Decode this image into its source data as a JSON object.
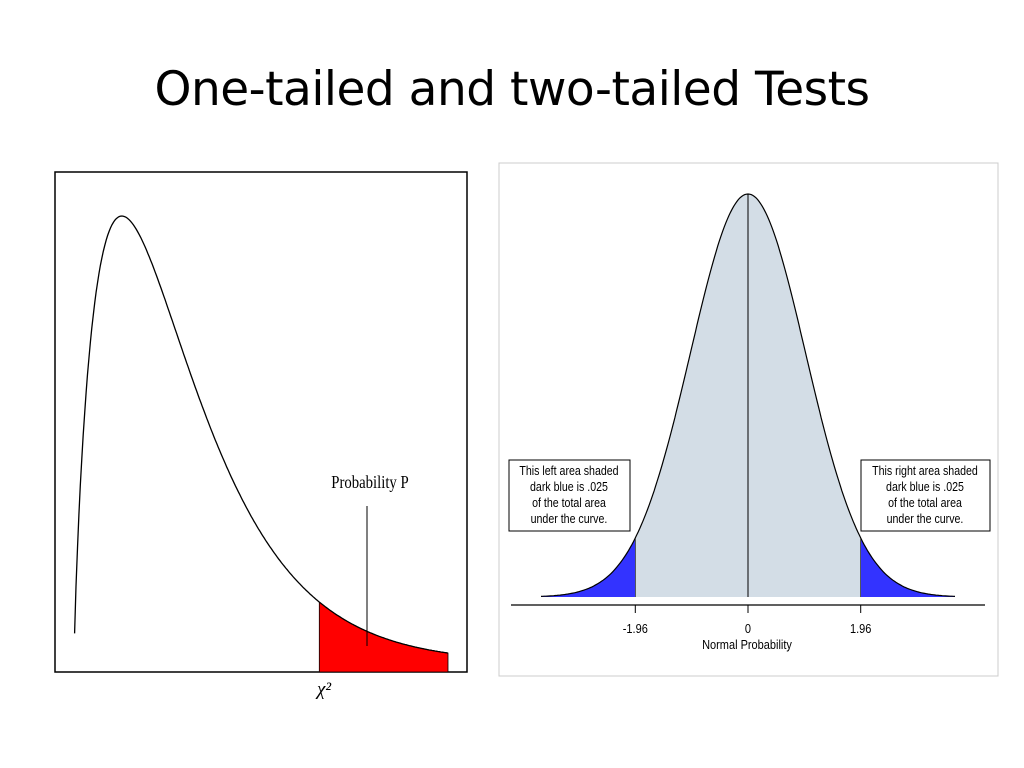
{
  "slide": {
    "title": "One-tailed and two-tailed Tests"
  },
  "colors": {
    "chi_shade": "#ff0000",
    "normal_fill": "#d3dde6",
    "normal_tail": "#3333ff"
  },
  "chart_data": [
    {
      "type": "area",
      "distribution": "chi-square",
      "annotation": "Probability P",
      "x_marker_label": "χ²",
      "shaded_tail": "right",
      "grid": false,
      "legend": "none"
    },
    {
      "type": "area",
      "distribution": "normal",
      "xlabel": "Normal Probability",
      "tick_labels": [
        "-1.96",
        "0",
        "1.96"
      ],
      "ticks": [
        -1.96,
        0,
        1.96
      ],
      "xlim": [
        -3.2,
        3.2
      ],
      "tail_area_each": 0.025,
      "critical_values": [
        -1.96,
        1.96
      ],
      "grid": false,
      "legend": "none",
      "annotations": {
        "left": [
          "This left area shaded",
          "dark blue is .025",
          "of the total area",
          "under the curve."
        ],
        "right": [
          "This right area shaded",
          "dark blue is .025",
          "of the total area",
          "under the curve."
        ]
      }
    }
  ]
}
